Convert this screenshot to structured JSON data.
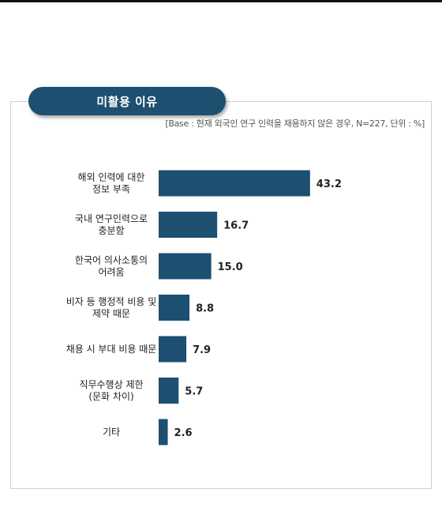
{
  "header": {
    "title": "미활용 이유",
    "base_note": "[Base : 현재 외국인 연구 인력을 채용하지 않은 경우, N=227, 단위 : %]"
  },
  "colors": {
    "bar": "#1c4f70",
    "pill": "#1c4f70",
    "panel_border": "#cfcfcf"
  },
  "chart_data": {
    "type": "bar",
    "orientation": "horizontal",
    "categories": [
      [
        "해외 인력에 대한",
        "정보 부족"
      ],
      [
        "국내 연구인력으로",
        "충분함"
      ],
      [
        "한국어 의사소통의",
        "어려움"
      ],
      [
        "비자 등 행정적 비용 및",
        "제약 때문"
      ],
      [
        "채용 시 부대 비용 때문"
      ],
      [
        "직무수행상 제한",
        "(문화 차이)"
      ],
      [
        "기타"
      ]
    ],
    "values": [
      43.2,
      16.7,
      15.0,
      8.8,
      7.9,
      5.7,
      2.6
    ],
    "value_labels": [
      "43.2",
      "16.7",
      "15.0",
      "8.8",
      "7.9",
      "5.7",
      "2.6"
    ],
    "unit": "%",
    "xlim": [
      0,
      50
    ],
    "grid": false,
    "legend": "none"
  }
}
